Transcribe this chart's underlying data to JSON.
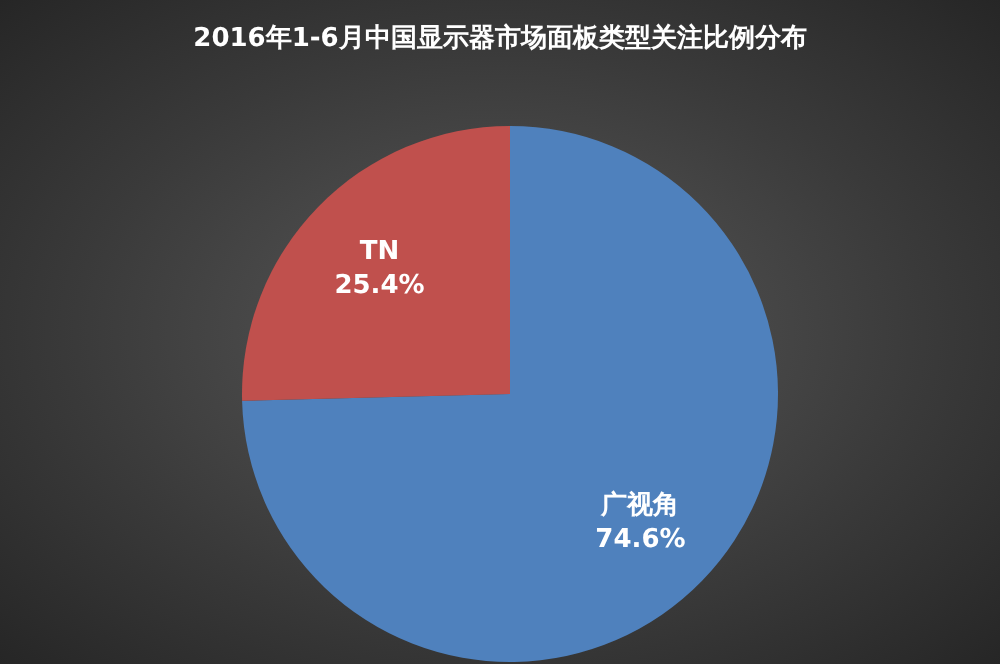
{
  "chart_data": {
    "type": "pie",
    "title": "2016年1-6月中国显示器市场面板类型关注比例分布",
    "categories": [
      "广视角",
      "TN"
    ],
    "values": [
      74.6,
      25.4
    ],
    "colors": [
      "#4f81bd",
      "#c0504d"
    ],
    "value_labels": [
      "74.6%",
      "25.4%"
    ]
  }
}
